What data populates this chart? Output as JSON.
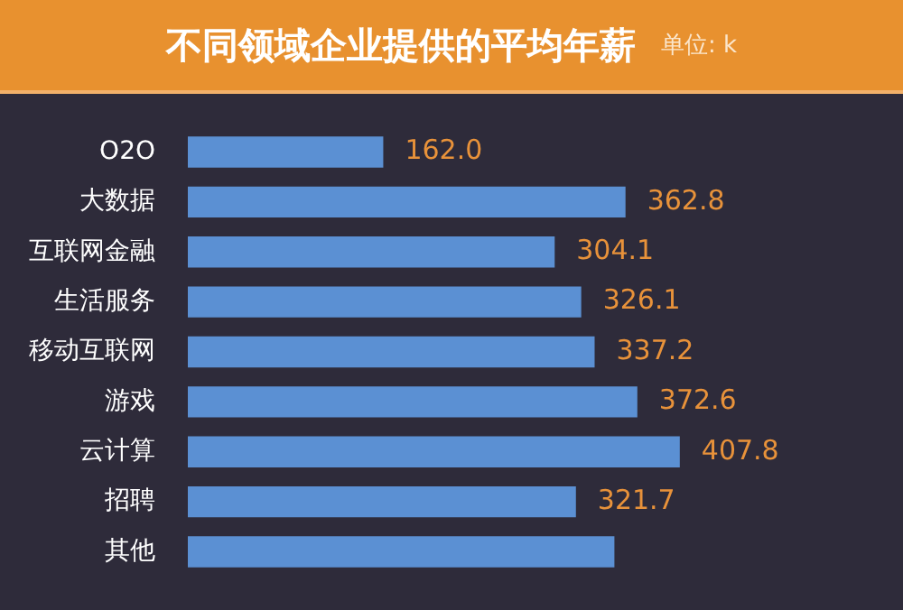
{
  "chart_data": {
    "type": "bar",
    "orientation": "horizontal",
    "title": "不同领域企业提供的平均年薪",
    "subtitle": "单位: k",
    "categories": [
      "O2O",
      "大数据",
      "互联网金融",
      "生活服务",
      "移动互联网",
      "游戏",
      "云计算",
      "招聘",
      "其他"
    ],
    "values": [
      162.0,
      362.8,
      304.1,
      326.1,
      337.2,
      372.6,
      407.8,
      321.7,
      353.6
    ],
    "value_labels": [
      "162.0",
      "362.8",
      "304.1",
      "326.1",
      "337.2",
      "372.6",
      "407.8",
      "321.7",
      null
    ],
    "color": "#5b90d3",
    "tick_labels": "y",
    "legend": false
  }
}
